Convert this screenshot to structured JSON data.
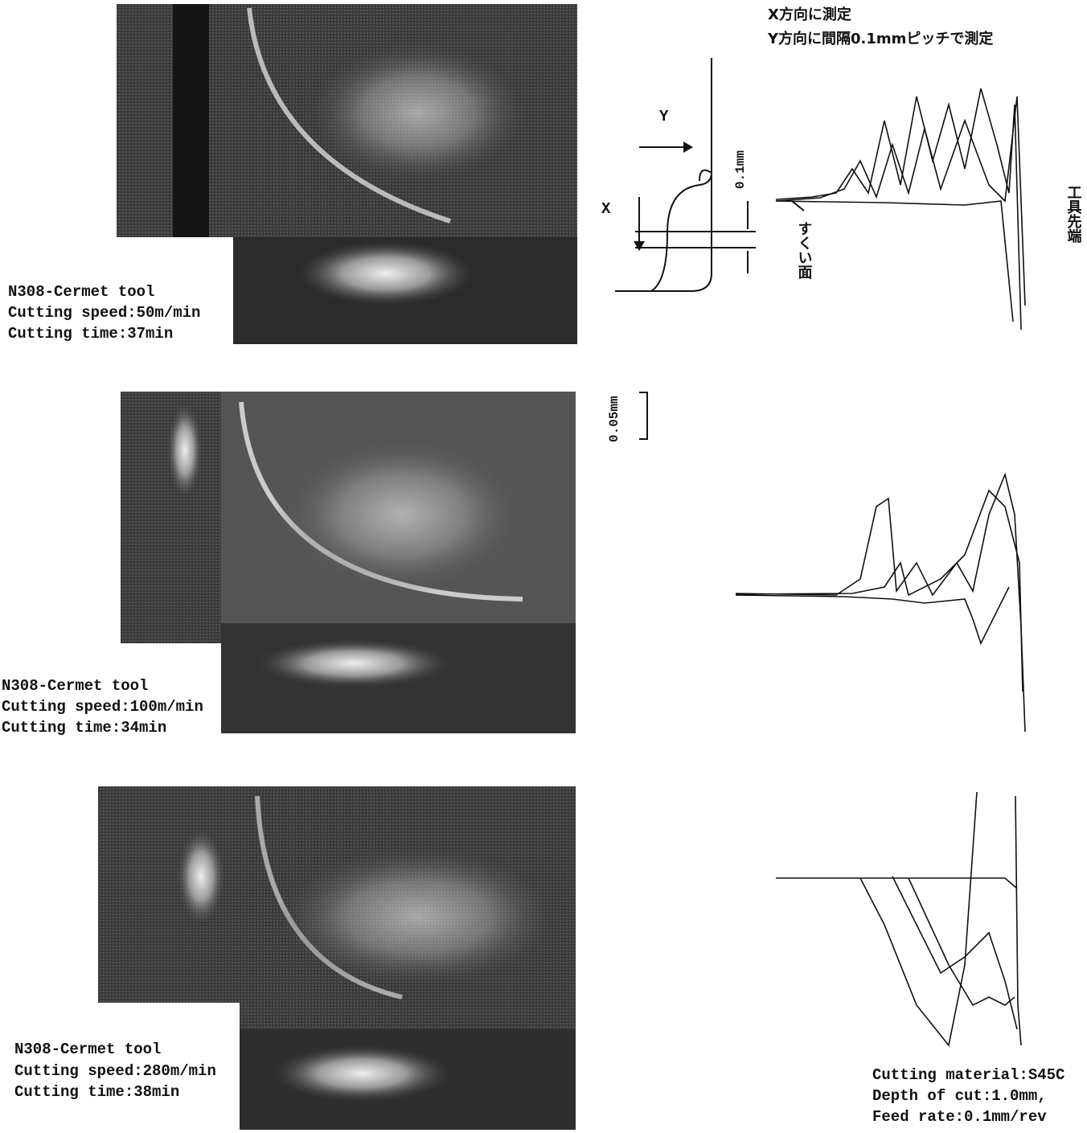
{
  "panels": [
    {
      "tool": "N308-Cermet tool",
      "speed": "Cutting speed:50m/min",
      "time": "Cutting time:37min"
    },
    {
      "tool": "N308-Cermet tool",
      "speed": "Cutting speed:100m/min",
      "time": "Cutting time:34min"
    },
    {
      "tool": "N308-Cermet tool",
      "speed": "Cutting speed:280m/min",
      "time": "Cutting time:38min"
    }
  ],
  "diagram": {
    "note_x": "X方向に測定",
    "note_y": "Y方向に間隔0.1mmピッチで測定",
    "label_y": "Y",
    "label_x": "X",
    "pitch": "0.1mm",
    "rake_face": "すくい面",
    "tool_tip": "工具先端",
    "scale": "0.05mm"
  },
  "conditions": [
    "Cutting material:S45C",
    "Depth of cut:1.0mm,",
    "Feed rate:0.1mm/rev"
  ]
}
